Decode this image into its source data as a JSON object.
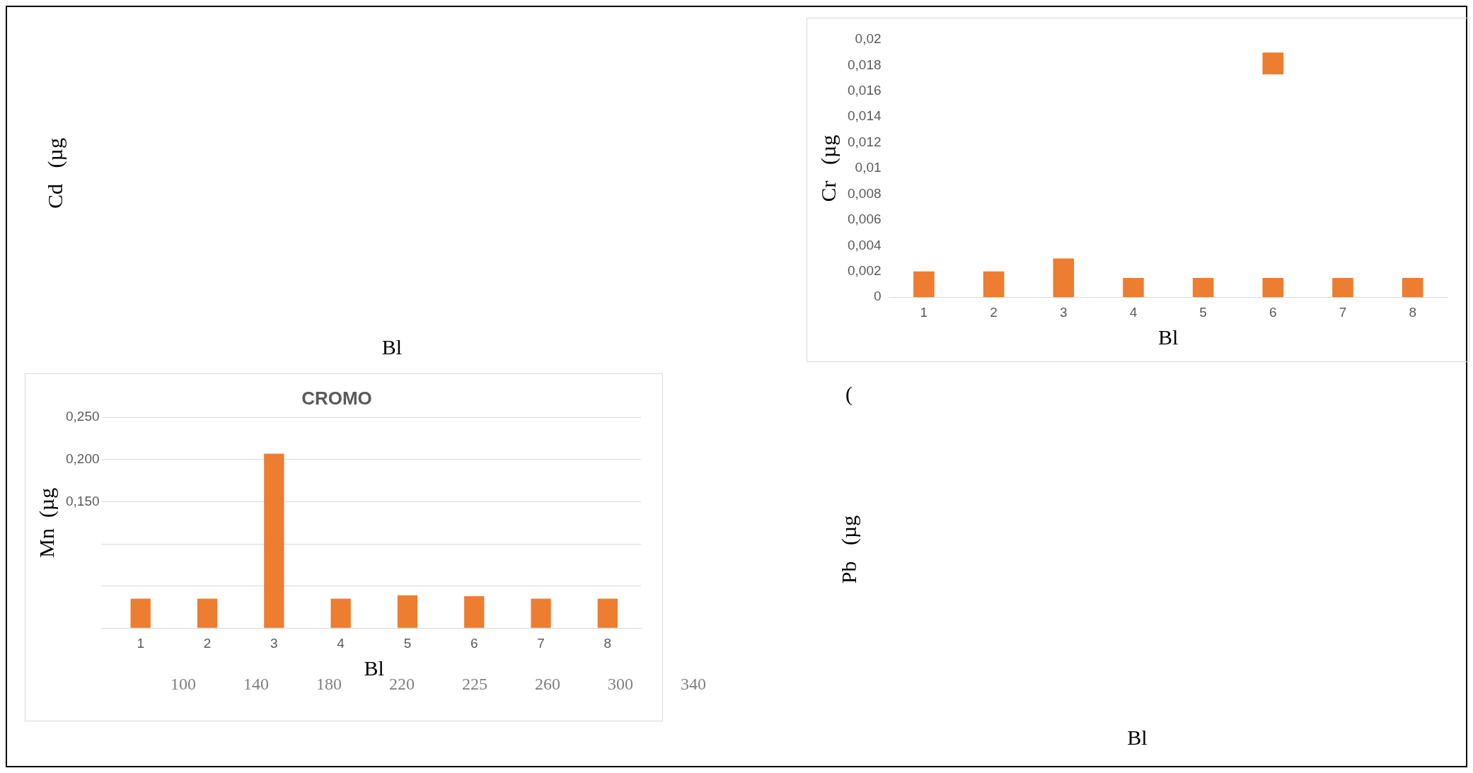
{
  "chart_data": [
    {
      "type": "other",
      "ylabel": "Cd   (µg",
      "xlabel": "Bl"
    },
    {
      "type": "bar",
      "ylabel": "Cr   (µg",
      "xlabel": "Bl",
      "categories": [
        "1",
        "2",
        "3",
        "4",
        "5",
        "6",
        "7",
        "8"
      ],
      "series": [
        {
          "color": "#ed7d31",
          "values": [
            0.002,
            0.002,
            0.003,
            0.0015,
            0.0015,
            0.0015,
            0.0015,
            0.0015
          ]
        },
        {
          "color": "#ed7d31",
          "values": [
            null,
            null,
            null,
            null,
            null,
            0.0017,
            null,
            null
          ],
          "base": [
            null,
            null,
            null,
            null,
            null,
            0.0173,
            null,
            null
          ]
        }
      ],
      "ylim": [
        0,
        0.02
      ],
      "yticks": [
        0,
        {
          "value": 0.002,
          "label": "0,002"
        },
        {
          "value": 0.004,
          "label": "0,004"
        },
        {
          "value": 0.006,
          "label": "0,006"
        },
        {
          "value": 0.008,
          "label": "0,008"
        },
        {
          "value": 0.01,
          "label": "0,01"
        },
        {
          "value": 0.012,
          "label": "0,012"
        },
        {
          "value": 0.014,
          "label": "0,014"
        },
        {
          "value": 0.016,
          "label": "0,016"
        },
        {
          "value": 0.018,
          "label": "0,018"
        },
        {
          "value": 0.02,
          "label": "0,02"
        }
      ],
      "grid": false,
      "legend": false
    },
    {
      "type": "bar",
      "title": "CROMO",
      "ylabel": "Mn  (µg",
      "xlabel": "Bl",
      "categories": [
        "1",
        "2",
        "3",
        "4",
        "5",
        "6",
        "7",
        "8"
      ],
      "series": [
        {
          "color": "#ed7d31",
          "values": [
            0.035,
            0.035,
            0.207,
            0.035,
            0.039,
            0.038,
            0.035,
            0.035
          ]
        }
      ],
      "ylim": [
        0,
        0.25
      ],
      "yticks": [
        {
          "value": 0,
          "label": null
        },
        {
          "value": 0.05,
          "label": null
        },
        {
          "value": 0.1,
          "label": null
        },
        {
          "value": 0.15,
          "label": "0,150"
        },
        {
          "value": 0.2,
          "label": "0,200"
        },
        {
          "value": 0.25,
          "label": "0,250"
        }
      ],
      "grid": "y",
      "legend": false,
      "annotations": [
        "100",
        "140",
        "180",
        "220",
        "225",
        "260",
        "300",
        "340"
      ]
    },
    {
      "type": "other",
      "ylabel": "Pb   (µg",
      "xlabel": "Bl",
      "annotations": [
        "("
      ]
    }
  ]
}
